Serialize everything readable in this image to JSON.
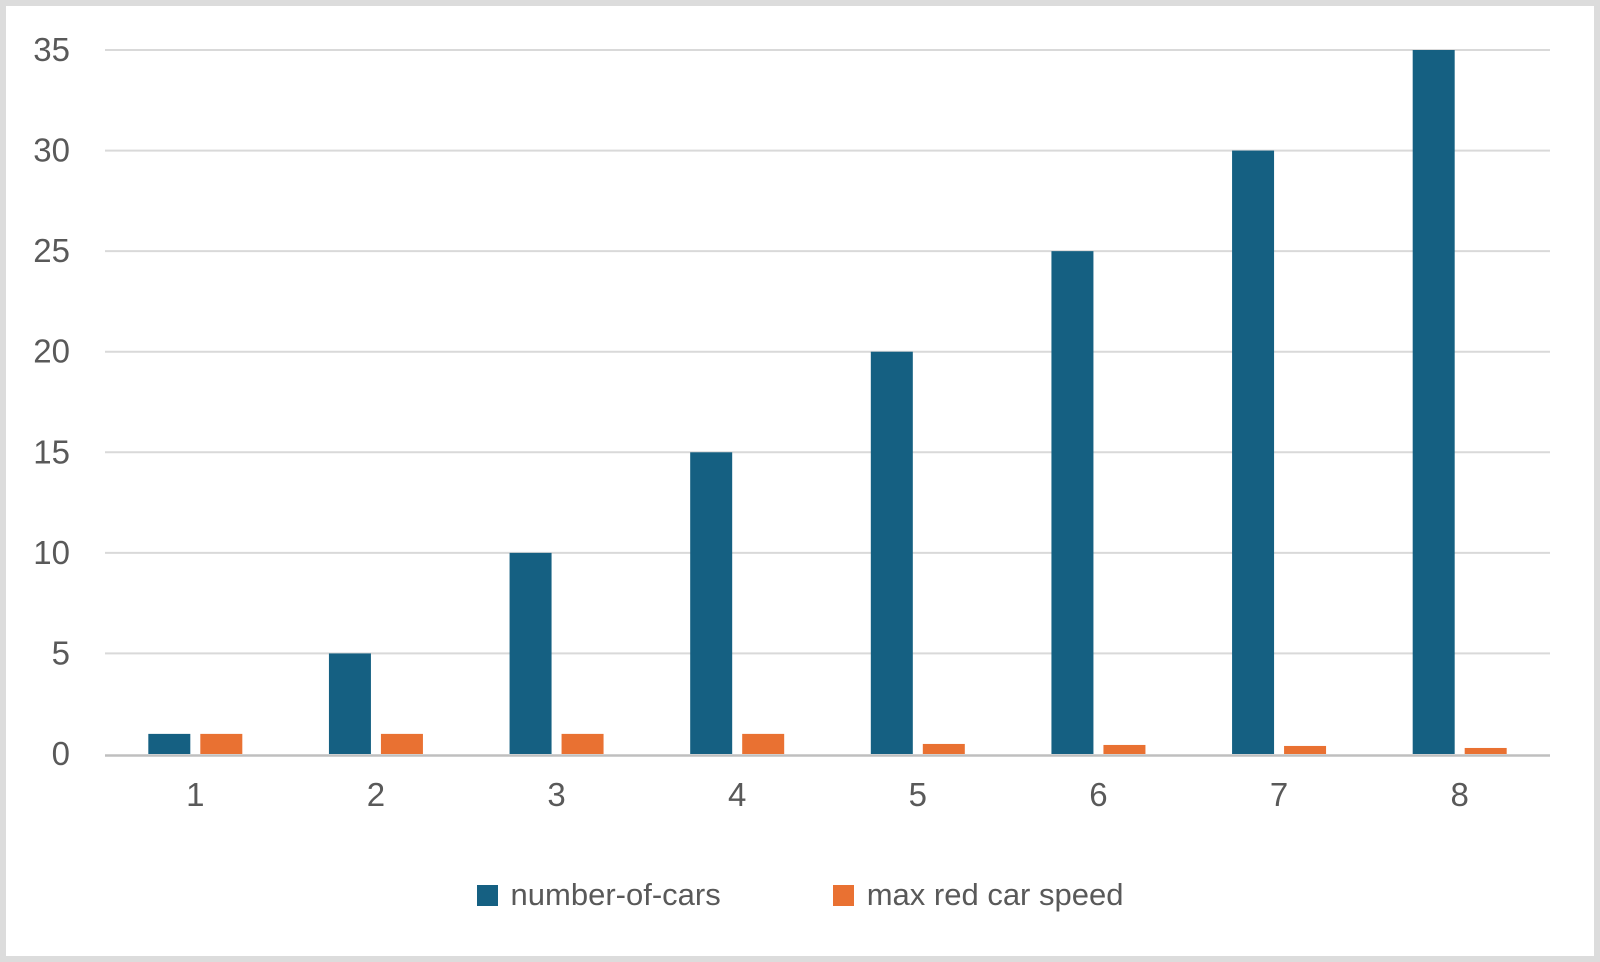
{
  "chart_data": {
    "type": "bar",
    "title": "",
    "xlabel": "",
    "ylabel": "",
    "categories": [
      "1",
      "2",
      "3",
      "4",
      "5",
      "6",
      "7",
      "8"
    ],
    "series": [
      {
        "name": "number-of-cars",
        "color": "#156082",
        "values": [
          1,
          5,
          10,
          15,
          20,
          25,
          30,
          35
        ]
      },
      {
        "name": "max red car speed",
        "color": "#E97132",
        "values": [
          1,
          1,
          1,
          1,
          0.5,
          0.45,
          0.4,
          0.3
        ]
      }
    ],
    "ylim": [
      0,
      35
    ],
    "yticks": [
      0,
      5,
      10,
      15,
      20,
      25,
      30,
      35
    ],
    "ytick_labels": [
      "0",
      "5",
      "10",
      "15",
      "20",
      "25",
      "30",
      "35"
    ],
    "grid": "horizontal",
    "legend_position": "bottom"
  },
  "colors": {
    "tick_text": "#595959",
    "legend_text": "#595959",
    "gridline": "#D9D9D9",
    "axis_line": "#BFBFBF",
    "background": "#FFFFFF",
    "frame_border": "#DCDCDC"
  },
  "legend": {
    "items": [
      {
        "label": "number-of-cars",
        "color": "#156082"
      },
      {
        "label": "max red car speed",
        "color": "#E97132"
      }
    ]
  }
}
